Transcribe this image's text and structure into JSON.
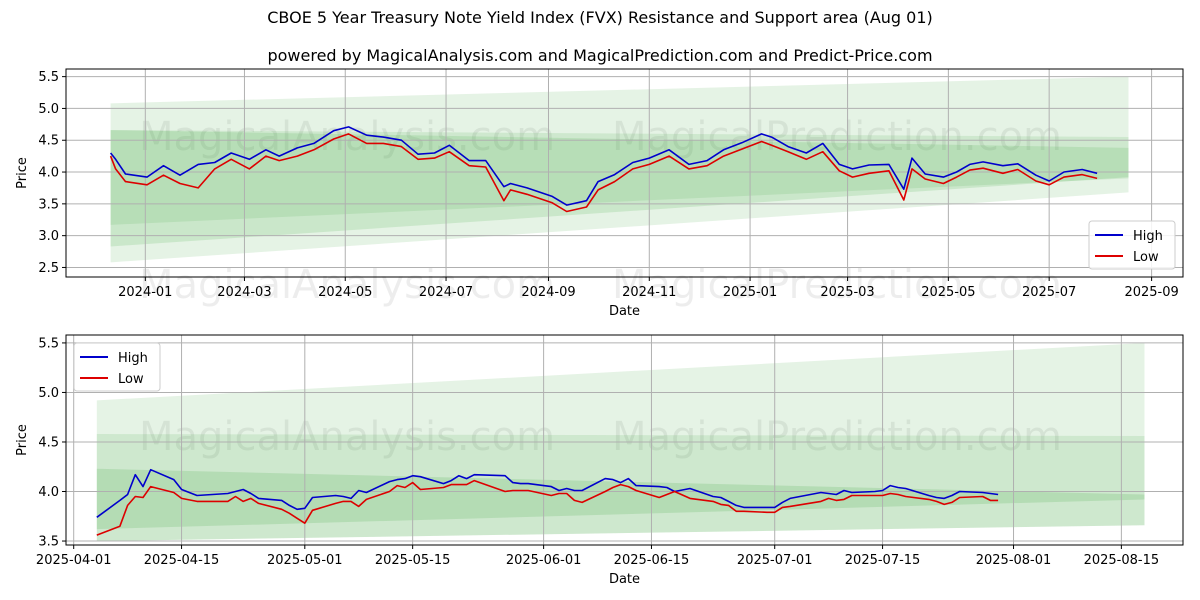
{
  "header": {
    "title": "CBOE 5 Year Treasury Note Yield Index (FVX) Resistance and Support area (Aug 01)",
    "subtitle": "powered by MagicalAnalysis.com and MagicalPrediction.com and Predict-Price.com"
  },
  "watermarks": [
    "MagicalAnalysis.com",
    "MagicalPrediction.com",
    "MagicalAnalysis.com",
    "MagicalPrediction.com",
    "MagicalAnalysis.com",
    "MagicalPrediction.com"
  ],
  "colors": {
    "high": "#0000cc",
    "low": "#dd0000",
    "band": "#2ca02c",
    "grid": "#b0b0b0"
  },
  "chart_data": [
    {
      "type": "line",
      "xlabel": "Date",
      "ylabel": "Price",
      "xlim": [
        "2023-11-14",
        "2025-09-20"
      ],
      "ylim": [
        2.35,
        5.62
      ],
      "xticks": [
        "2024-01",
        "2024-03",
        "2024-05",
        "2024-07",
        "2024-09",
        "2024-11",
        "2025-01",
        "2025-03",
        "2025-05",
        "2025-07",
        "2025-09"
      ],
      "xtick_dates": [
        "2024-01-01",
        "2024-03-01",
        "2024-05-01",
        "2024-07-01",
        "2024-09-01",
        "2024-11-01",
        "2025-01-01",
        "2025-03-01",
        "2025-05-01",
        "2025-07-01",
        "2025-09-01"
      ],
      "yticks": [
        "2.5",
        "3.0",
        "3.5",
        "4.0",
        "4.5",
        "5.0",
        "5.5"
      ],
      "ytick_values": [
        2.5,
        3.0,
        3.5,
        4.0,
        4.5,
        5.0,
        5.5
      ],
      "grid": true,
      "legend_position": "lower-right",
      "legend": [
        "High",
        "Low"
      ],
      "bands": [
        {
          "x": [
            "2023-12-11",
            "2025-08-18"
          ],
          "upper": [
            5.08,
            5.5
          ],
          "lower": [
            3.17,
            3.9
          ],
          "opacity": 0.12
        },
        {
          "x": [
            "2023-12-11",
            "2025-08-18"
          ],
          "upper": [
            4.66,
            4.55
          ],
          "lower": [
            2.58,
            3.68
          ],
          "opacity": 0.12
        },
        {
          "x": [
            "2023-12-11",
            "2025-08-18"
          ],
          "upper": [
            4.66,
            4.38
          ],
          "lower": [
            2.83,
            3.92
          ],
          "opacity": 0.14
        }
      ],
      "series": [
        {
          "name": "High",
          "x": [
            "2023-12-11",
            "2023-12-14",
            "2023-12-20",
            "2024-01-02",
            "2024-01-12",
            "2024-01-22",
            "2024-02-02",
            "2024-02-12",
            "2024-02-22",
            "2024-03-04",
            "2024-03-14",
            "2024-03-22",
            "2024-04-02",
            "2024-04-12",
            "2024-04-24",
            "2024-05-03",
            "2024-05-14",
            "2024-05-24",
            "2024-06-04",
            "2024-06-14",
            "2024-06-24",
            "2024-07-03",
            "2024-07-15",
            "2024-07-25",
            "2024-08-05",
            "2024-08-09",
            "2024-08-19",
            "2024-09-03",
            "2024-09-12",
            "2024-09-24",
            "2024-10-01",
            "2024-10-11",
            "2024-10-22",
            "2024-11-01",
            "2024-11-13",
            "2024-11-25",
            "2024-12-06",
            "2024-12-16",
            "2024-12-27",
            "2025-01-08",
            "2025-01-14",
            "2025-01-24",
            "2025-02-04",
            "2025-02-14",
            "2025-02-24",
            "2025-03-04",
            "2025-03-14",
            "2025-03-26",
            "2025-04-04",
            "2025-04-09",
            "2025-04-17",
            "2025-04-28",
            "2025-05-06",
            "2025-05-14",
            "2025-05-22",
            "2025-06-03",
            "2025-06-12",
            "2025-06-23",
            "2025-07-01",
            "2025-07-10",
            "2025-07-21",
            "2025-07-30"
          ],
          "values": [
            4.3,
            4.2,
            3.97,
            3.92,
            4.1,
            3.95,
            4.12,
            4.15,
            4.3,
            4.2,
            4.35,
            4.25,
            4.38,
            4.45,
            4.65,
            4.71,
            4.58,
            4.55,
            4.5,
            4.28,
            4.3,
            4.42,
            4.18,
            4.18,
            3.77,
            3.82,
            3.75,
            3.62,
            3.48,
            3.55,
            3.85,
            3.96,
            4.15,
            4.22,
            4.35,
            4.12,
            4.18,
            4.35,
            4.46,
            4.6,
            4.55,
            4.4,
            4.3,
            4.45,
            4.12,
            4.05,
            4.11,
            4.12,
            3.73,
            4.22,
            3.97,
            3.92,
            4.0,
            4.12,
            4.16,
            4.1,
            4.13,
            3.95,
            3.86,
            4.0,
            4.04,
            3.98
          ]
        },
        {
          "name": "Low",
          "x": [
            "2023-12-11",
            "2023-12-14",
            "2023-12-20",
            "2024-01-02",
            "2024-01-12",
            "2024-01-22",
            "2024-02-02",
            "2024-02-12",
            "2024-02-22",
            "2024-03-04",
            "2024-03-14",
            "2024-03-22",
            "2024-04-02",
            "2024-04-12",
            "2024-04-24",
            "2024-05-03",
            "2024-05-14",
            "2024-05-24",
            "2024-06-04",
            "2024-06-14",
            "2024-06-24",
            "2024-07-03",
            "2024-07-15",
            "2024-07-25",
            "2024-08-05",
            "2024-08-09",
            "2024-08-19",
            "2024-09-03",
            "2024-09-12",
            "2024-09-24",
            "2024-10-01",
            "2024-10-11",
            "2024-10-22",
            "2024-11-01",
            "2024-11-13",
            "2024-11-25",
            "2024-12-06",
            "2024-12-16",
            "2024-12-27",
            "2025-01-08",
            "2025-01-14",
            "2025-01-24",
            "2025-02-04",
            "2025-02-14",
            "2025-02-24",
            "2025-03-04",
            "2025-03-14",
            "2025-03-26",
            "2025-04-04",
            "2025-04-09",
            "2025-04-17",
            "2025-04-28",
            "2025-05-06",
            "2025-05-14",
            "2025-05-22",
            "2025-06-03",
            "2025-06-12",
            "2025-06-23",
            "2025-07-01",
            "2025-07-10",
            "2025-07-21",
            "2025-07-30"
          ],
          "values": [
            4.25,
            4.05,
            3.85,
            3.8,
            3.95,
            3.82,
            3.75,
            4.05,
            4.2,
            4.05,
            4.25,
            4.18,
            4.25,
            4.35,
            4.52,
            4.6,
            4.45,
            4.45,
            4.4,
            4.2,
            4.22,
            4.32,
            4.1,
            4.08,
            3.55,
            3.72,
            3.65,
            3.52,
            3.38,
            3.45,
            3.72,
            3.85,
            4.05,
            4.12,
            4.25,
            4.05,
            4.1,
            4.25,
            4.36,
            4.48,
            4.42,
            4.32,
            4.2,
            4.32,
            4.02,
            3.92,
            3.98,
            4.02,
            3.56,
            4.05,
            3.89,
            3.82,
            3.92,
            4.03,
            4.06,
            3.98,
            4.04,
            3.86,
            3.8,
            3.92,
            3.96,
            3.9
          ]
        }
      ]
    },
    {
      "type": "line",
      "xlabel": "Date",
      "ylabel": "Price",
      "xlim": [
        "2025-03-31",
        "2025-08-23"
      ],
      "ylim": [
        3.46,
        5.58
      ],
      "xticks": [
        "2025-04-01",
        "2025-04-15",
        "2025-05-01",
        "2025-05-15",
        "2025-06-01",
        "2025-06-15",
        "2025-07-01",
        "2025-07-15",
        "2025-08-01",
        "2025-08-15"
      ],
      "xtick_dates": [
        "2025-04-01",
        "2025-04-15",
        "2025-05-01",
        "2025-05-15",
        "2025-06-01",
        "2025-06-15",
        "2025-07-01",
        "2025-07-15",
        "2025-08-01",
        "2025-08-15"
      ],
      "yticks": [
        "3.5",
        "4.0",
        "4.5",
        "5.0",
        "5.5"
      ],
      "ytick_values": [
        3.5,
        4.0,
        4.5,
        5.0,
        5.5
      ],
      "grid": true,
      "legend_position": "upper-left",
      "legend": [
        "High",
        "Low"
      ],
      "bands": [
        {
          "x": [
            "2025-04-04",
            "2025-08-18"
          ],
          "upper": [
            4.92,
            5.5
          ],
          "lower": [
            3.5,
            3.66
          ],
          "opacity": 0.12
        },
        {
          "x": [
            "2025-04-04",
            "2025-08-18"
          ],
          "upper": [
            4.58,
            4.56
          ],
          "lower": [
            3.5,
            3.66
          ],
          "opacity": 0.12
        },
        {
          "x": [
            "2025-04-04",
            "2025-08-18"
          ],
          "upper": [
            4.23,
            3.97
          ],
          "lower": [
            3.62,
            3.92
          ],
          "opacity": 0.16
        }
      ],
      "series": [
        {
          "name": "High",
          "x": [
            "2025-04-04",
            "2025-04-07",
            "2025-04-08",
            "2025-04-09",
            "2025-04-10",
            "2025-04-11",
            "2025-04-14",
            "2025-04-15",
            "2025-04-17",
            "2025-04-21",
            "2025-04-22",
            "2025-04-23",
            "2025-04-24",
            "2025-04-25",
            "2025-04-28",
            "2025-04-29",
            "2025-04-30",
            "2025-05-01",
            "2025-05-02",
            "2025-05-05",
            "2025-05-06",
            "2025-05-07",
            "2025-05-08",
            "2025-05-09",
            "2025-05-12",
            "2025-05-13",
            "2025-05-14",
            "2025-05-15",
            "2025-05-16",
            "2025-05-19",
            "2025-05-20",
            "2025-05-21",
            "2025-05-22",
            "2025-05-23",
            "2025-05-27",
            "2025-05-28",
            "2025-05-29",
            "2025-05-30",
            "2025-06-02",
            "2025-06-03",
            "2025-06-04",
            "2025-06-05",
            "2025-06-06",
            "2025-06-09",
            "2025-06-10",
            "2025-06-11",
            "2025-06-12",
            "2025-06-13",
            "2025-06-16",
            "2025-06-17",
            "2025-06-18",
            "2025-06-20",
            "2025-06-23",
            "2025-06-24",
            "2025-06-25",
            "2025-06-26",
            "2025-06-27",
            "2025-06-30",
            "2025-07-01",
            "2025-07-02",
            "2025-07-03",
            "2025-07-07",
            "2025-07-08",
            "2025-07-09",
            "2025-07-10",
            "2025-07-11",
            "2025-07-14",
            "2025-07-15",
            "2025-07-16",
            "2025-07-17",
            "2025-07-18",
            "2025-07-21",
            "2025-07-22",
            "2025-07-23",
            "2025-07-24",
            "2025-07-25",
            "2025-07-28",
            "2025-07-29",
            "2025-07-30"
          ],
          "values": [
            3.74,
            3.91,
            3.97,
            4.17,
            4.05,
            4.22,
            4.12,
            4.02,
            3.96,
            3.98,
            4.0,
            4.02,
            3.98,
            3.93,
            3.91,
            3.86,
            3.82,
            3.83,
            3.94,
            3.96,
            3.95,
            3.93,
            4.01,
            3.99,
            4.1,
            4.12,
            4.13,
            4.16,
            4.15,
            4.08,
            4.11,
            4.16,
            4.13,
            4.17,
            4.16,
            4.09,
            4.08,
            4.08,
            4.05,
            4.01,
            4.03,
            4.01,
            4.01,
            4.13,
            4.12,
            4.09,
            4.13,
            4.06,
            4.05,
            4.04,
            4.0,
            4.03,
            3.95,
            3.94,
            3.9,
            3.86,
            3.84,
            3.84,
            3.84,
            3.89,
            3.93,
            3.99,
            3.98,
            3.97,
            4.01,
            3.99,
            4.0,
            4.01,
            4.06,
            4.04,
            4.03,
            3.96,
            3.94,
            3.93,
            3.96,
            4.0,
            3.99,
            3.98,
            3.97
          ]
        },
        {
          "name": "Low",
          "x": [
            "2025-04-04",
            "2025-04-07",
            "2025-04-08",
            "2025-04-09",
            "2025-04-10",
            "2025-04-11",
            "2025-04-14",
            "2025-04-15",
            "2025-04-17",
            "2025-04-21",
            "2025-04-22",
            "2025-04-23",
            "2025-04-24",
            "2025-04-25",
            "2025-04-28",
            "2025-04-29",
            "2025-04-30",
            "2025-05-01",
            "2025-05-02",
            "2025-05-05",
            "2025-05-06",
            "2025-05-07",
            "2025-05-08",
            "2025-05-09",
            "2025-05-12",
            "2025-05-13",
            "2025-05-14",
            "2025-05-15",
            "2025-05-16",
            "2025-05-19",
            "2025-05-20",
            "2025-05-21",
            "2025-05-22",
            "2025-05-23",
            "2025-05-27",
            "2025-05-28",
            "2025-05-29",
            "2025-05-30",
            "2025-06-02",
            "2025-06-03",
            "2025-06-04",
            "2025-06-05",
            "2025-06-06",
            "2025-06-09",
            "2025-06-10",
            "2025-06-11",
            "2025-06-12",
            "2025-06-13",
            "2025-06-16",
            "2025-06-17",
            "2025-06-18",
            "2025-06-20",
            "2025-06-23",
            "2025-06-24",
            "2025-06-25",
            "2025-06-26",
            "2025-06-27",
            "2025-06-30",
            "2025-07-01",
            "2025-07-02",
            "2025-07-03",
            "2025-07-07",
            "2025-07-08",
            "2025-07-09",
            "2025-07-10",
            "2025-07-11",
            "2025-07-14",
            "2025-07-15",
            "2025-07-16",
            "2025-07-17",
            "2025-07-18",
            "2025-07-21",
            "2025-07-22",
            "2025-07-23",
            "2025-07-24",
            "2025-07-25",
            "2025-07-28",
            "2025-07-29",
            "2025-07-30"
          ],
          "values": [
            3.56,
            3.65,
            3.86,
            3.95,
            3.94,
            4.05,
            3.99,
            3.93,
            3.9,
            3.9,
            3.95,
            3.9,
            3.93,
            3.88,
            3.82,
            3.78,
            3.73,
            3.68,
            3.81,
            3.88,
            3.9,
            3.9,
            3.85,
            3.92,
            4.0,
            4.06,
            4.04,
            4.09,
            4.02,
            4.04,
            4.07,
            4.07,
            4.07,
            4.11,
            4.0,
            4.01,
            4.01,
            4.01,
            3.96,
            3.98,
            3.98,
            3.91,
            3.89,
            4.0,
            4.04,
            4.07,
            4.05,
            4.01,
            3.94,
            3.97,
            4.0,
            3.93,
            3.9,
            3.87,
            3.86,
            3.8,
            3.8,
            3.79,
            3.79,
            3.84,
            3.85,
            3.9,
            3.93,
            3.91,
            3.92,
            3.96,
            3.96,
            3.96,
            3.98,
            3.97,
            3.95,
            3.92,
            3.9,
            3.87,
            3.89,
            3.94,
            3.95,
            3.91,
            3.91
          ]
        }
      ]
    }
  ]
}
